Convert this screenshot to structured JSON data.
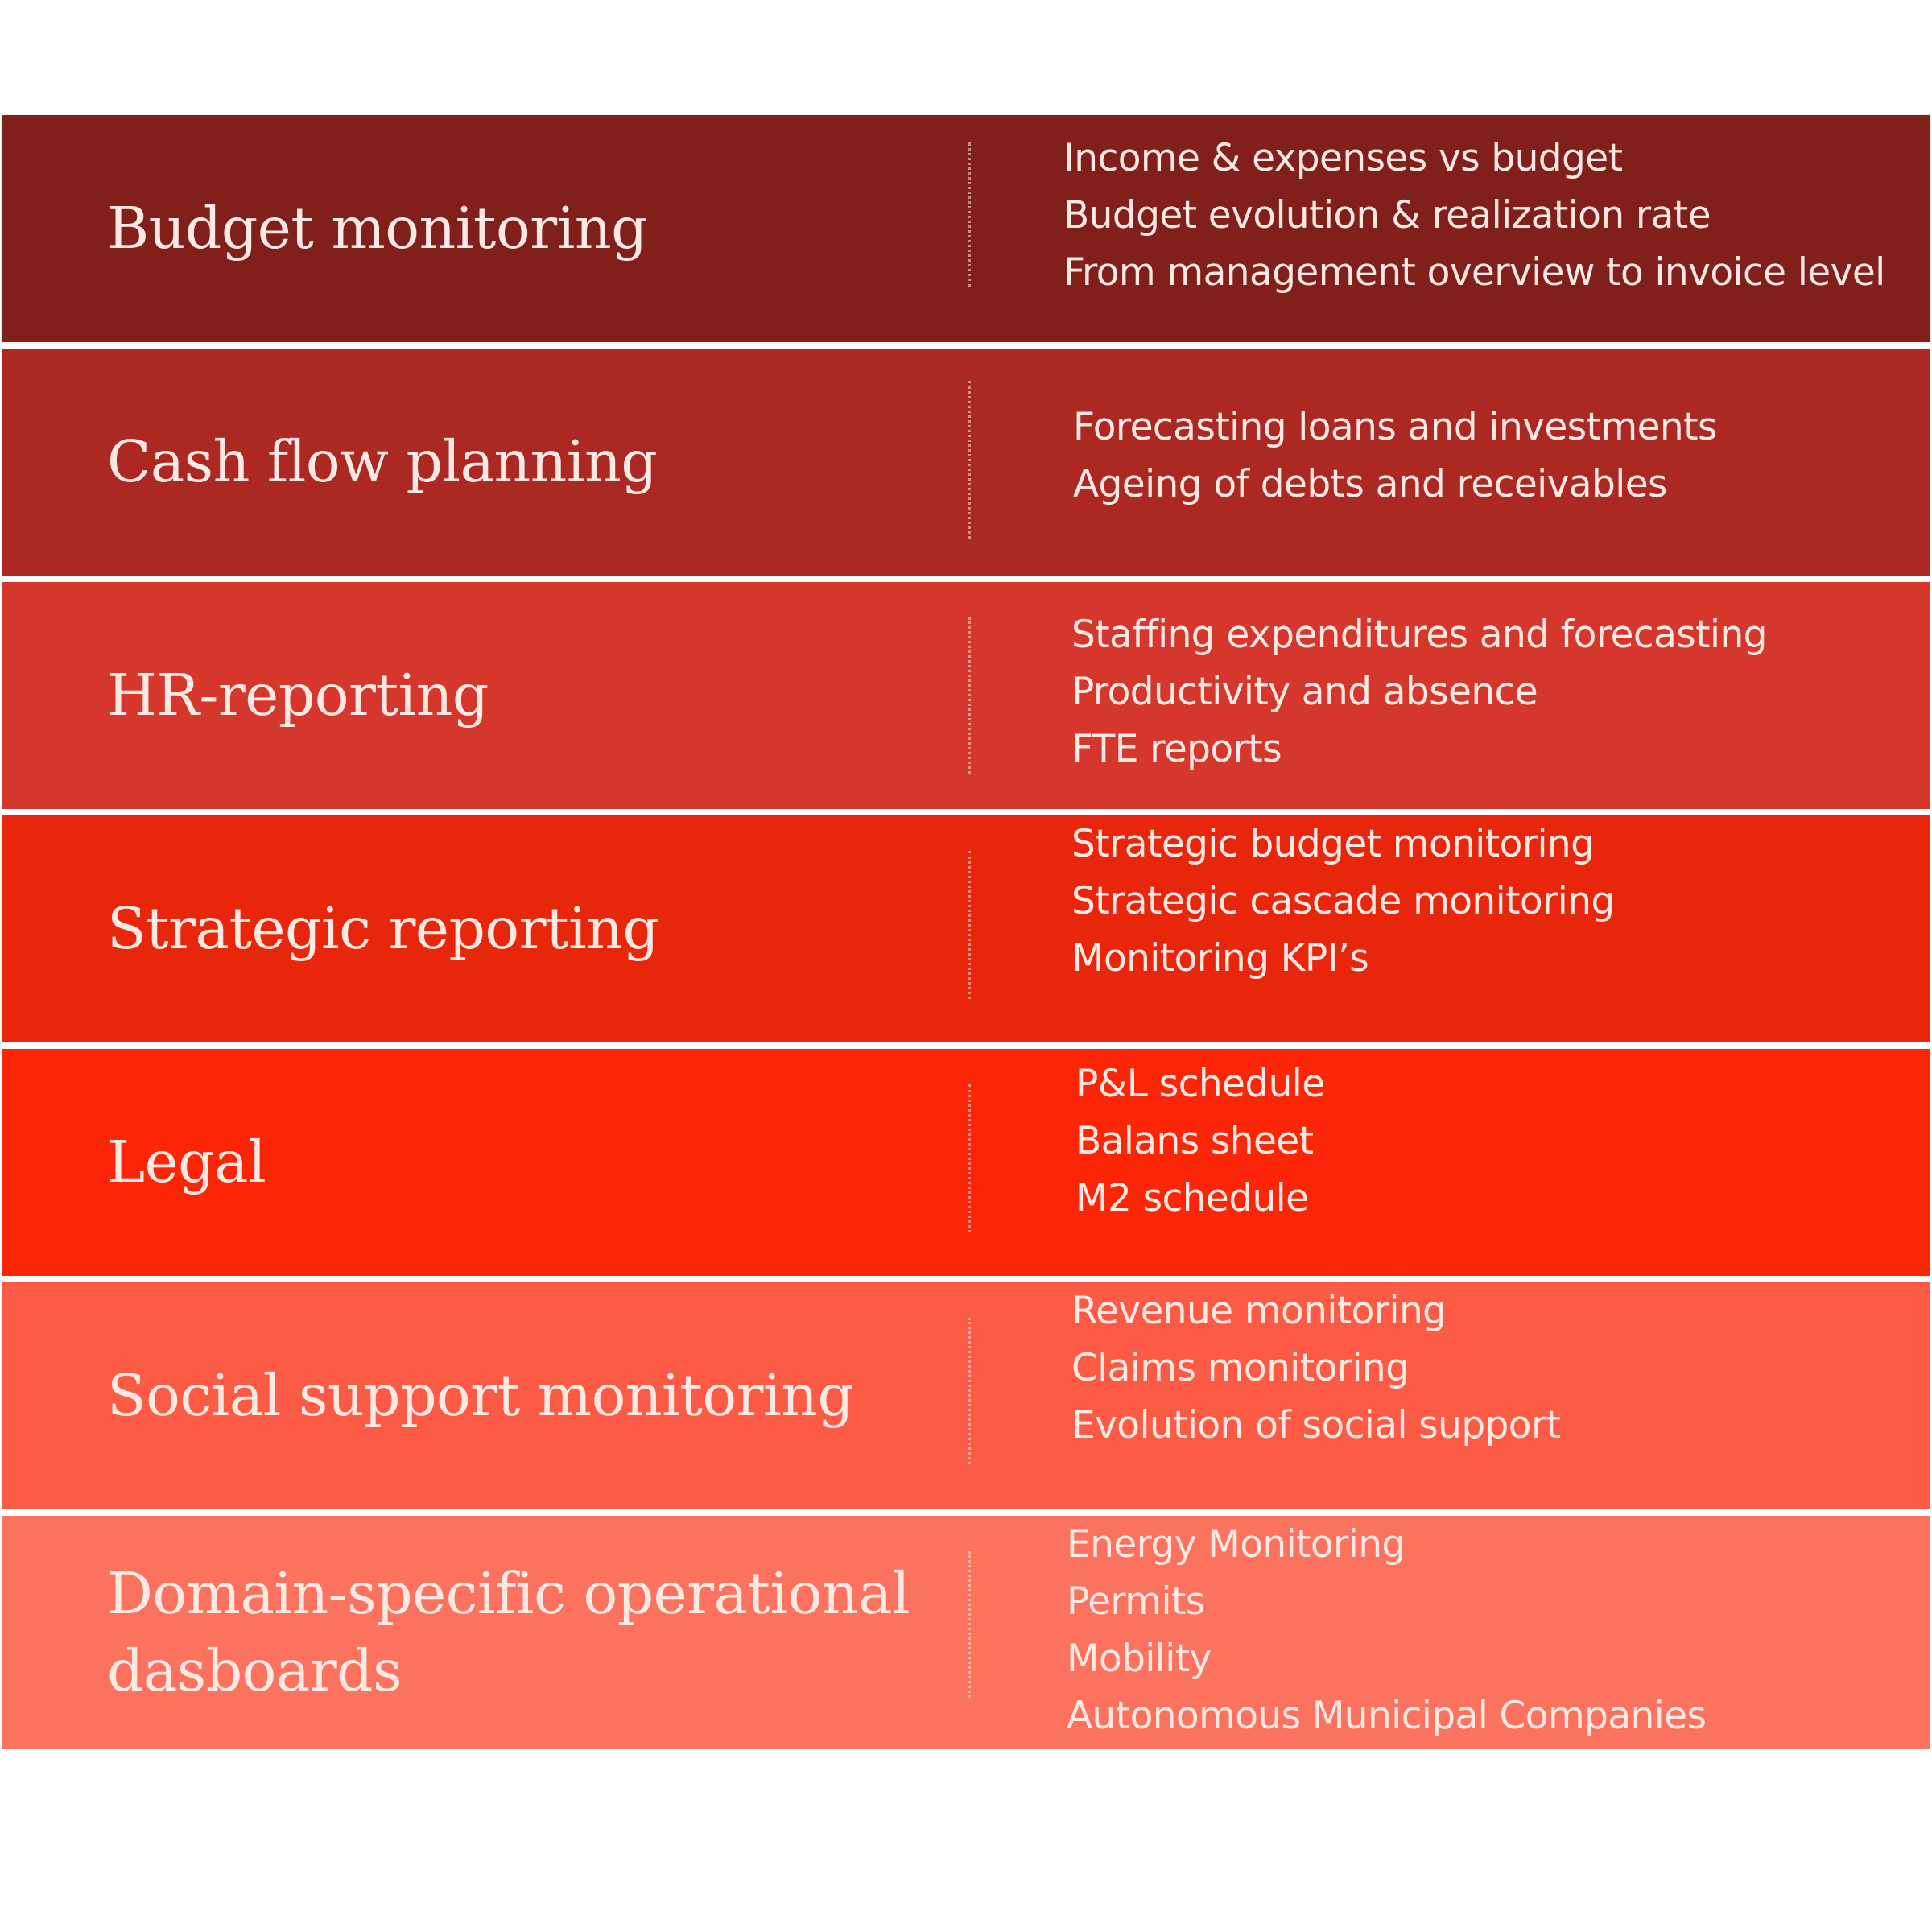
{
  "rows": [
    {
      "title": "Budget monitoring",
      "color": "#811f1a",
      "items": [
        "Income & expenses vs budget",
        "Budget evolution & realization rate",
        "From management overview to invoice level"
      ]
    },
    {
      "title": "Cash flow planning",
      "color": "#ab2823",
      "items": [
        "Forecasting loans and investments",
        "Ageing of debts and receivables"
      ]
    },
    {
      "title": "HR-reporting",
      "color": "#d5372c",
      "items": [
        "Staffing expenditures and forecasting",
        "Productivity and absence",
        "FTE reports"
      ]
    },
    {
      "title": "Strategic reporting",
      "color": "#e8260c",
      "items": [
        "Strategic budget monitoring",
        "Strategic cascade monitoring",
        "Monitoring KPI’s"
      ]
    },
    {
      "title": "Legal",
      "color": "#fb2607",
      "items": [
        "P&L schedule",
        "Balans sheet",
        "M2 schedule"
      ]
    },
    {
      "title": "Social support monitoring",
      "color": "#fb5b45",
      "items": [
        "Revenue monitoring",
        "Claims monitoring",
        "Evolution of social support"
      ]
    },
    {
      "title": "Domain-specific operational dasboards",
      "color": "#fb735f",
      "items": [
        "Energy Monitoring",
        "Permits",
        "Mobility",
        "Autonomous Municipal Companies"
      ]
    }
  ]
}
